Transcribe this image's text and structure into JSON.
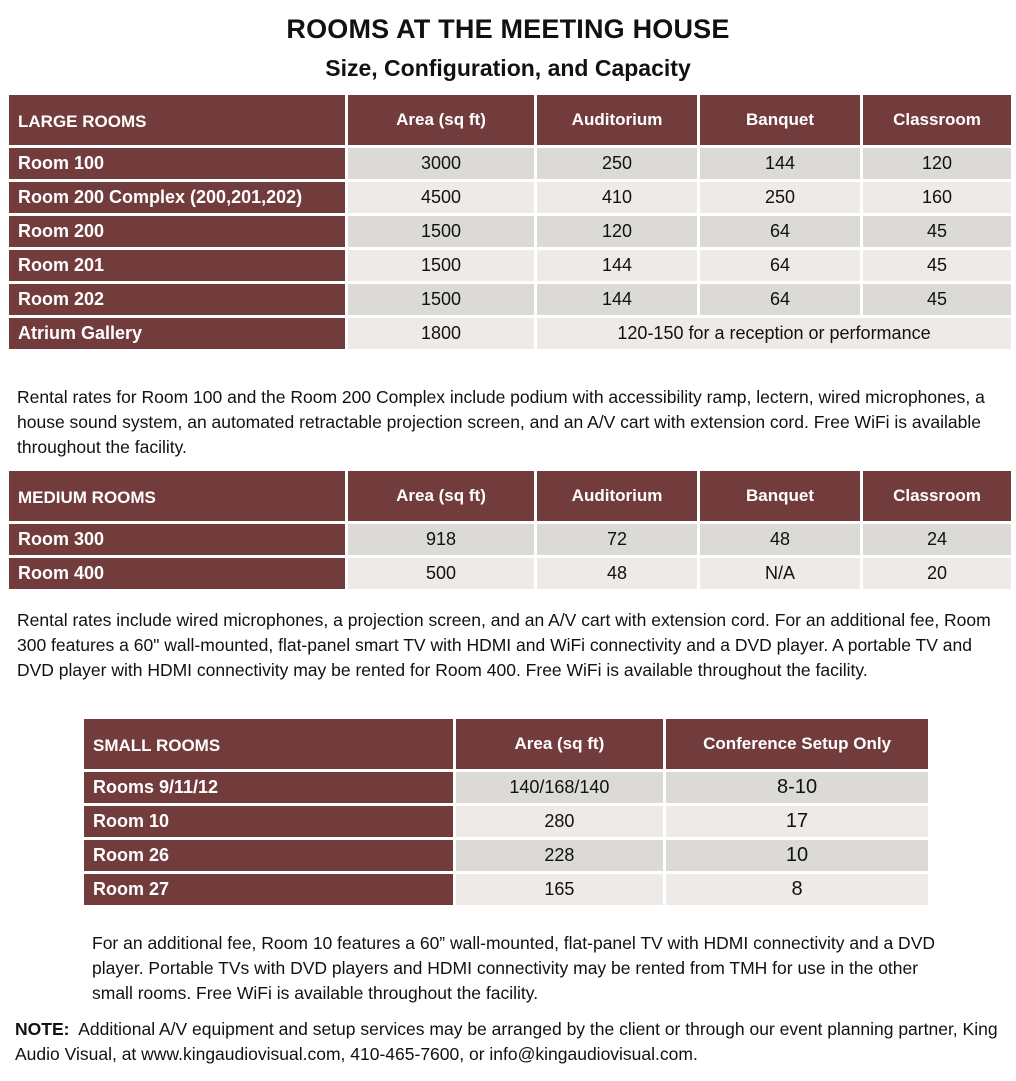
{
  "title": "ROOMS AT THE MEETING HOUSE",
  "subtitle": "Size, Configuration, and Capacity",
  "large": {
    "headers": [
      "LARGE ROOMS",
      "Area (sq ft)",
      "Auditorium",
      "Banquet",
      "Classroom"
    ],
    "rows": [
      [
        "Room 100",
        "3000",
        "250",
        "144",
        "120"
      ],
      [
        "Room 200 Complex (200,201,202)",
        "4500",
        "410",
        "250",
        "160"
      ],
      [
        "Room 200",
        "1500",
        "120",
        "64",
        "45"
      ],
      [
        "Room 201",
        "1500",
        "144",
        "64",
        "45"
      ],
      [
        "Room 202",
        "1500",
        "144",
        "64",
        "45"
      ]
    ],
    "atrium": {
      "name": "Atrium Gallery",
      "area": "1800",
      "capacity": "120-150 for a reception or performance"
    },
    "note": "Rental rates for Room 100 and the Room 200 Complex include podium with accessibility ramp, lectern, wired microphones, a house sound system, an automated retractable projection screen, and an A/V cart with extension cord. Free WiFi is available throughout the facility."
  },
  "medium": {
    "headers": [
      "MEDIUM ROOMS",
      "Area (sq ft)",
      "Auditorium",
      "Banquet",
      "Classroom"
    ],
    "rows": [
      [
        "Room 300",
        "918",
        "72",
        "48",
        "24"
      ],
      [
        "Room 400",
        "500",
        "48",
        "N/A",
        "20"
      ]
    ],
    "note": "Rental rates include wired microphones, a projection screen, and an A/V cart with extension cord. For an additional fee, Room 300 features a 60\" wall-mounted, flat-panel smart TV with HDMI and WiFi connectivity and a DVD player. A portable TV and DVD player with HDMI connectivity may be rented for Room 400. Free WiFi is available throughout the facility."
  },
  "small": {
    "headers": [
      "SMALL ROOMS",
      "Area (sq ft)",
      "Conference Setup Only"
    ],
    "rows": [
      [
        "Rooms 9/11/12",
        "140/168/140",
        "8-10"
      ],
      [
        "Room 10",
        "280",
        "17"
      ],
      [
        "Room 26",
        "228",
        "10"
      ],
      [
        "Room 27",
        "165",
        "8"
      ]
    ],
    "note": "For an additional fee, Room 10 features a 60” wall-mounted, flat-panel TV with HDMI connectivity and a DVD player. Portable TVs with DVD players and HDMI connectivity may be rented from TMH for use in the other small rooms. Free WiFi is available throughout the facility."
  },
  "footer": {
    "label": "NOTE:",
    "text": "Additional A/V equipment and setup services may be arranged by the client or through our event planning partner, King Audio Visual, at www.kingaudiovisual.com, 410-465-7600, or info@kingaudiovisual.com."
  },
  "colors": {
    "header_bg": "#733c3c",
    "row_odd": "#dcdad6",
    "row_even": "#eeeae8"
  }
}
